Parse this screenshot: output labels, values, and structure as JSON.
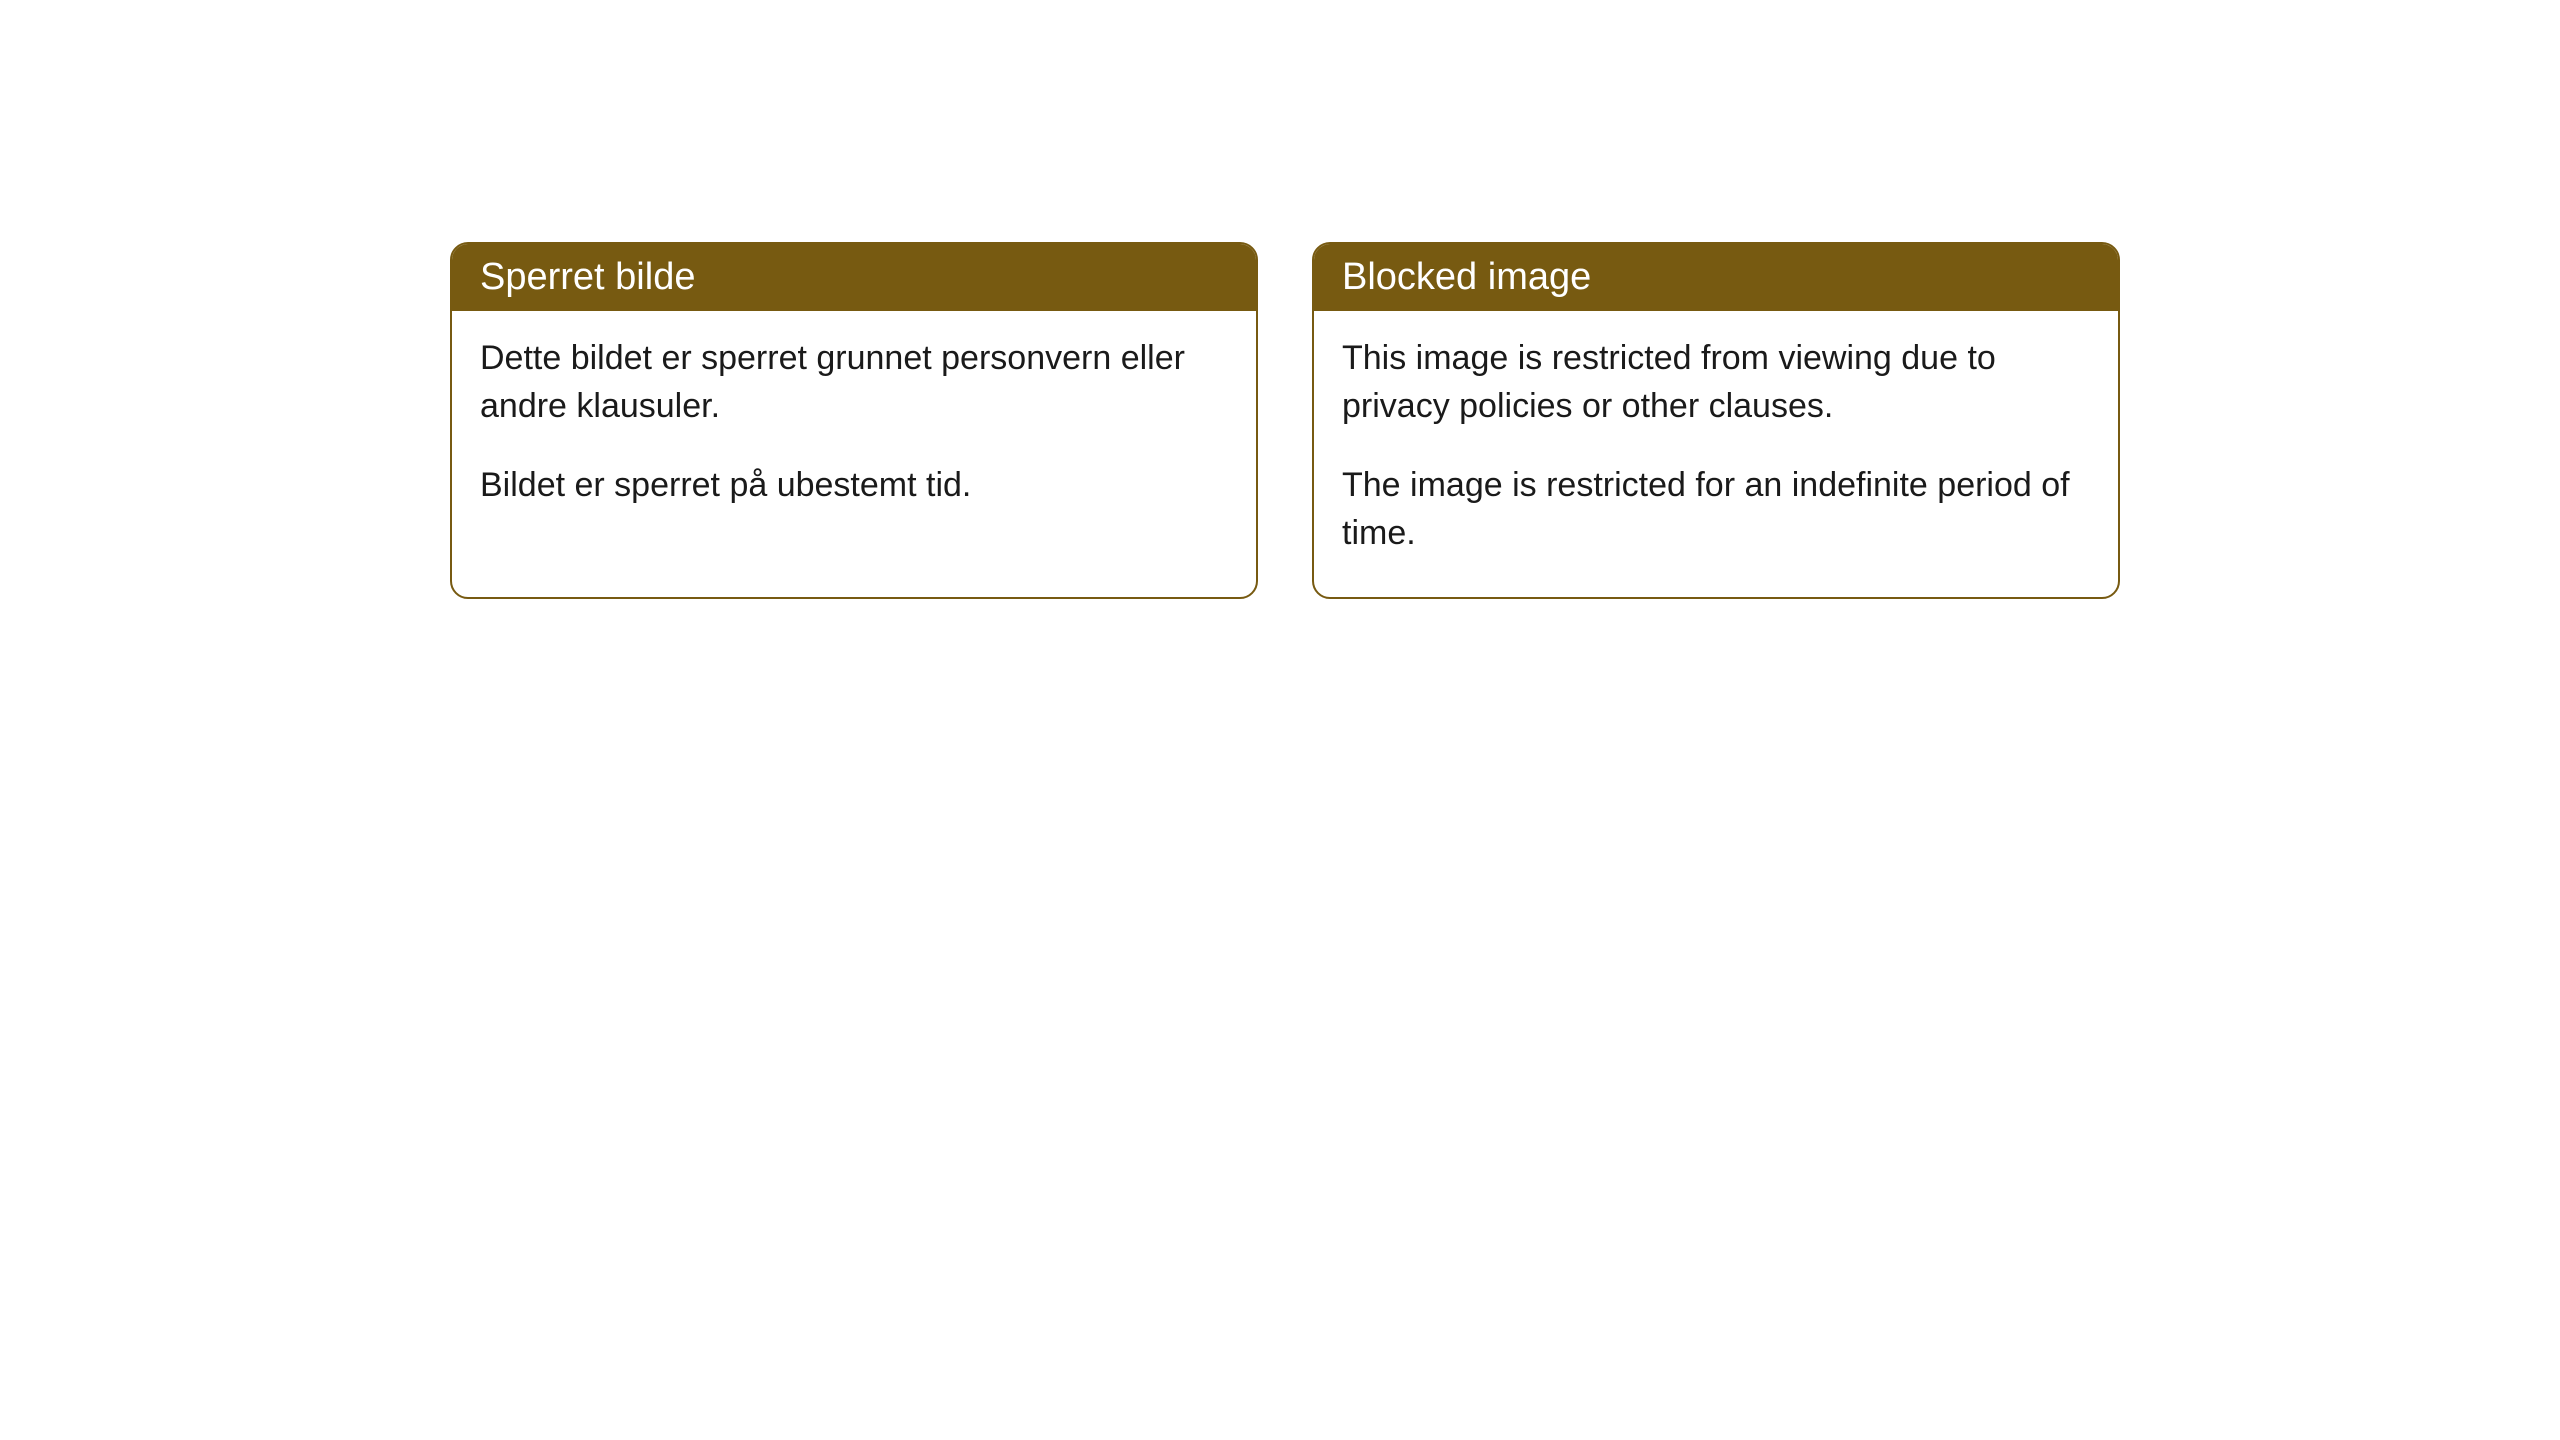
{
  "cards": [
    {
      "title": "Sperret bilde",
      "paragraph1": "Dette bildet er sperret grunnet personvern eller andre klausuler.",
      "paragraph2": "Bildet er sperret på ubestemt tid."
    },
    {
      "title": "Blocked image",
      "paragraph1": "This image is restricted from viewing due to privacy policies or other clauses.",
      "paragraph2": "The image is restricted for an indefinite period of time."
    }
  ],
  "style": {
    "header_bg_color": "#775a11",
    "header_text_color": "#ffffff",
    "border_color": "#775a11",
    "body_bg_color": "#ffffff",
    "body_text_color": "#1a1a1a",
    "border_radius": 18,
    "title_fontsize": 38,
    "body_fontsize": 34
  }
}
